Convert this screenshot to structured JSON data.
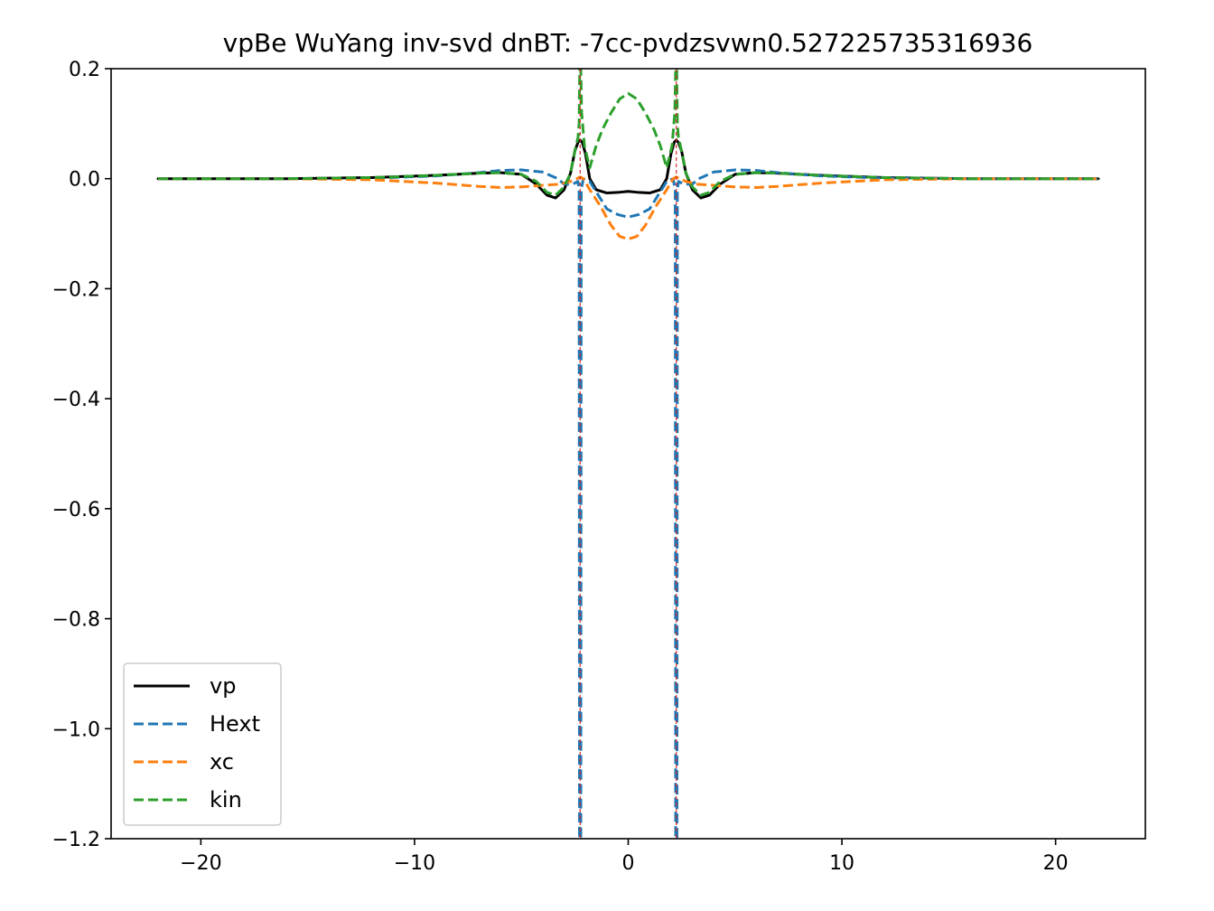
{
  "chart_data": {
    "type": "line",
    "title": "vpBe WuYang inv-svd dnBT: -7cc-pvdzsvwn0.527225735316936",
    "xlabel": "",
    "ylabel": "",
    "xlim": [
      -24.2,
      24.2
    ],
    "ylim": [
      -1.2,
      0.2
    ],
    "xticks": [
      -20,
      -10,
      0,
      10,
      20
    ],
    "xtick_labels": [
      "−20",
      "−10",
      "0",
      "10",
      "20"
    ],
    "yticks": [
      0.2,
      0.0,
      -0.2,
      -0.4,
      -0.6,
      -0.8,
      -1.0,
      -1.2
    ],
    "ytick_labels": [
      "0.2",
      "0.0",
      "−0.2",
      "−0.4",
      "−0.6",
      "−0.8",
      "−1.0",
      "−1.2"
    ],
    "grid": false,
    "legend_position": "lower-left",
    "atom_markers_x": [
      -2.25,
      2.25
    ],
    "atom_marker_color": "#d62728",
    "series": [
      {
        "name": "vp",
        "color": "#000000",
        "style": "solid",
        "x": [
          -22,
          -16,
          -12,
          -9,
          -7,
          -6,
          -5,
          -4.3,
          -3.8,
          -3.4,
          -3.0,
          -2.7,
          -2.5,
          -2.35,
          -2.25,
          -2.15,
          -2.0,
          -1.8,
          -1.5,
          -1.0,
          -0.5,
          0,
          0.5,
          1.0,
          1.5,
          1.8,
          2.0,
          2.15,
          2.25,
          2.35,
          2.5,
          2.7,
          3.0,
          3.4,
          3.8,
          4.3,
          5,
          6,
          7,
          9,
          12,
          16,
          22
        ],
        "values": [
          0.0,
          0.0,
          0.002,
          0.006,
          0.01,
          0.011,
          0.008,
          -0.01,
          -0.03,
          -0.035,
          -0.02,
          0.01,
          0.05,
          0.066,
          0.07,
          0.066,
          0.045,
          0.0,
          -0.02,
          -0.026,
          -0.025,
          -0.023,
          -0.025,
          -0.026,
          -0.02,
          0.0,
          0.045,
          0.066,
          0.07,
          0.066,
          0.05,
          0.01,
          -0.02,
          -0.035,
          -0.03,
          -0.01,
          0.008,
          0.011,
          0.01,
          0.006,
          0.002,
          0.0,
          0.0
        ]
      },
      {
        "name": "Hext",
        "color": "#1f77b4",
        "style": "dashed",
        "x": [
          -22,
          -16,
          -12,
          -9,
          -7,
          -6,
          -5,
          -4,
          -3.3,
          -3.0,
          -2.6,
          -2.35,
          -2.3,
          -2.28,
          -2.22,
          -2.2,
          -2.1,
          -1.8,
          -1.4,
          -1.0,
          -0.5,
          0,
          0.5,
          1.0,
          1.4,
          1.8,
          2.1,
          2.2,
          2.22,
          2.28,
          2.3,
          2.35,
          2.6,
          3.0,
          3.3,
          4,
          5,
          6,
          7,
          9,
          12,
          16,
          22
        ],
        "values": [
          0.0,
          0.0,
          0.001,
          0.005,
          0.011,
          0.015,
          0.016,
          0.012,
          0.0,
          -0.01,
          -0.01,
          -0.005,
          -0.02,
          -1.2,
          -1.2,
          -0.02,
          0.0,
          -0.005,
          -0.03,
          -0.055,
          -0.065,
          -0.07,
          -0.065,
          -0.055,
          -0.03,
          -0.005,
          0.0,
          -0.02,
          -1.2,
          -1.2,
          -0.02,
          -0.005,
          -0.01,
          -0.01,
          0.0,
          0.012,
          0.016,
          0.015,
          0.011,
          0.005,
          0.001,
          0.0,
          0.0
        ]
      },
      {
        "name": "xc",
        "color": "#ff7f0e",
        "style": "dashed",
        "x": [
          -22,
          -16,
          -12,
          -9,
          -7,
          -6,
          -5,
          -4,
          -3.2,
          -2.7,
          -2.4,
          -2.25,
          -2.1,
          -1.8,
          -1.3,
          -0.8,
          -0.4,
          0,
          0.4,
          0.8,
          1.3,
          1.8,
          2.1,
          2.25,
          2.4,
          2.7,
          3.2,
          4,
          5,
          6,
          7,
          9,
          12,
          16,
          22
        ],
        "values": [
          0.0,
          0.0,
          -0.002,
          -0.008,
          -0.014,
          -0.016,
          -0.015,
          -0.012,
          -0.01,
          -0.005,
          0.0,
          0.003,
          0.0,
          -0.02,
          -0.05,
          -0.085,
          -0.105,
          -0.11,
          -0.105,
          -0.085,
          -0.05,
          -0.02,
          0.0,
          0.003,
          0.0,
          -0.005,
          -0.01,
          -0.012,
          -0.015,
          -0.016,
          -0.014,
          -0.008,
          -0.002,
          0.0,
          0.0
        ]
      },
      {
        "name": "kin",
        "color": "#2ca02c",
        "style": "dashed",
        "x": [
          -22,
          -16,
          -12,
          -9,
          -7,
          -6,
          -5,
          -4.3,
          -3.8,
          -3.4,
          -3.0,
          -2.7,
          -2.5,
          -2.35,
          -2.3,
          -2.27,
          -2.22,
          -2.18,
          -2.05,
          -1.8,
          -1.5,
          -1.2,
          -0.8,
          -0.4,
          0,
          0.4,
          0.8,
          1.2,
          1.5,
          1.8,
          2.05,
          2.18,
          2.22,
          2.27,
          2.3,
          2.35,
          2.5,
          2.7,
          3.0,
          3.4,
          3.8,
          4.3,
          5,
          6,
          7,
          9,
          12,
          16,
          22
        ],
        "values": [
          0.0,
          0.0,
          0.002,
          0.006,
          0.01,
          0.011,
          0.008,
          -0.005,
          -0.025,
          -0.03,
          -0.015,
          0.01,
          0.05,
          0.075,
          0.1,
          0.2,
          0.2,
          0.12,
          0.06,
          0.02,
          0.06,
          0.09,
          0.12,
          0.145,
          0.155,
          0.145,
          0.12,
          0.09,
          0.06,
          0.02,
          0.06,
          0.12,
          0.2,
          0.2,
          0.1,
          0.075,
          0.05,
          0.01,
          -0.015,
          -0.03,
          -0.025,
          -0.005,
          0.008,
          0.011,
          0.01,
          0.006,
          0.002,
          0.0,
          0.0
        ]
      }
    ]
  }
}
